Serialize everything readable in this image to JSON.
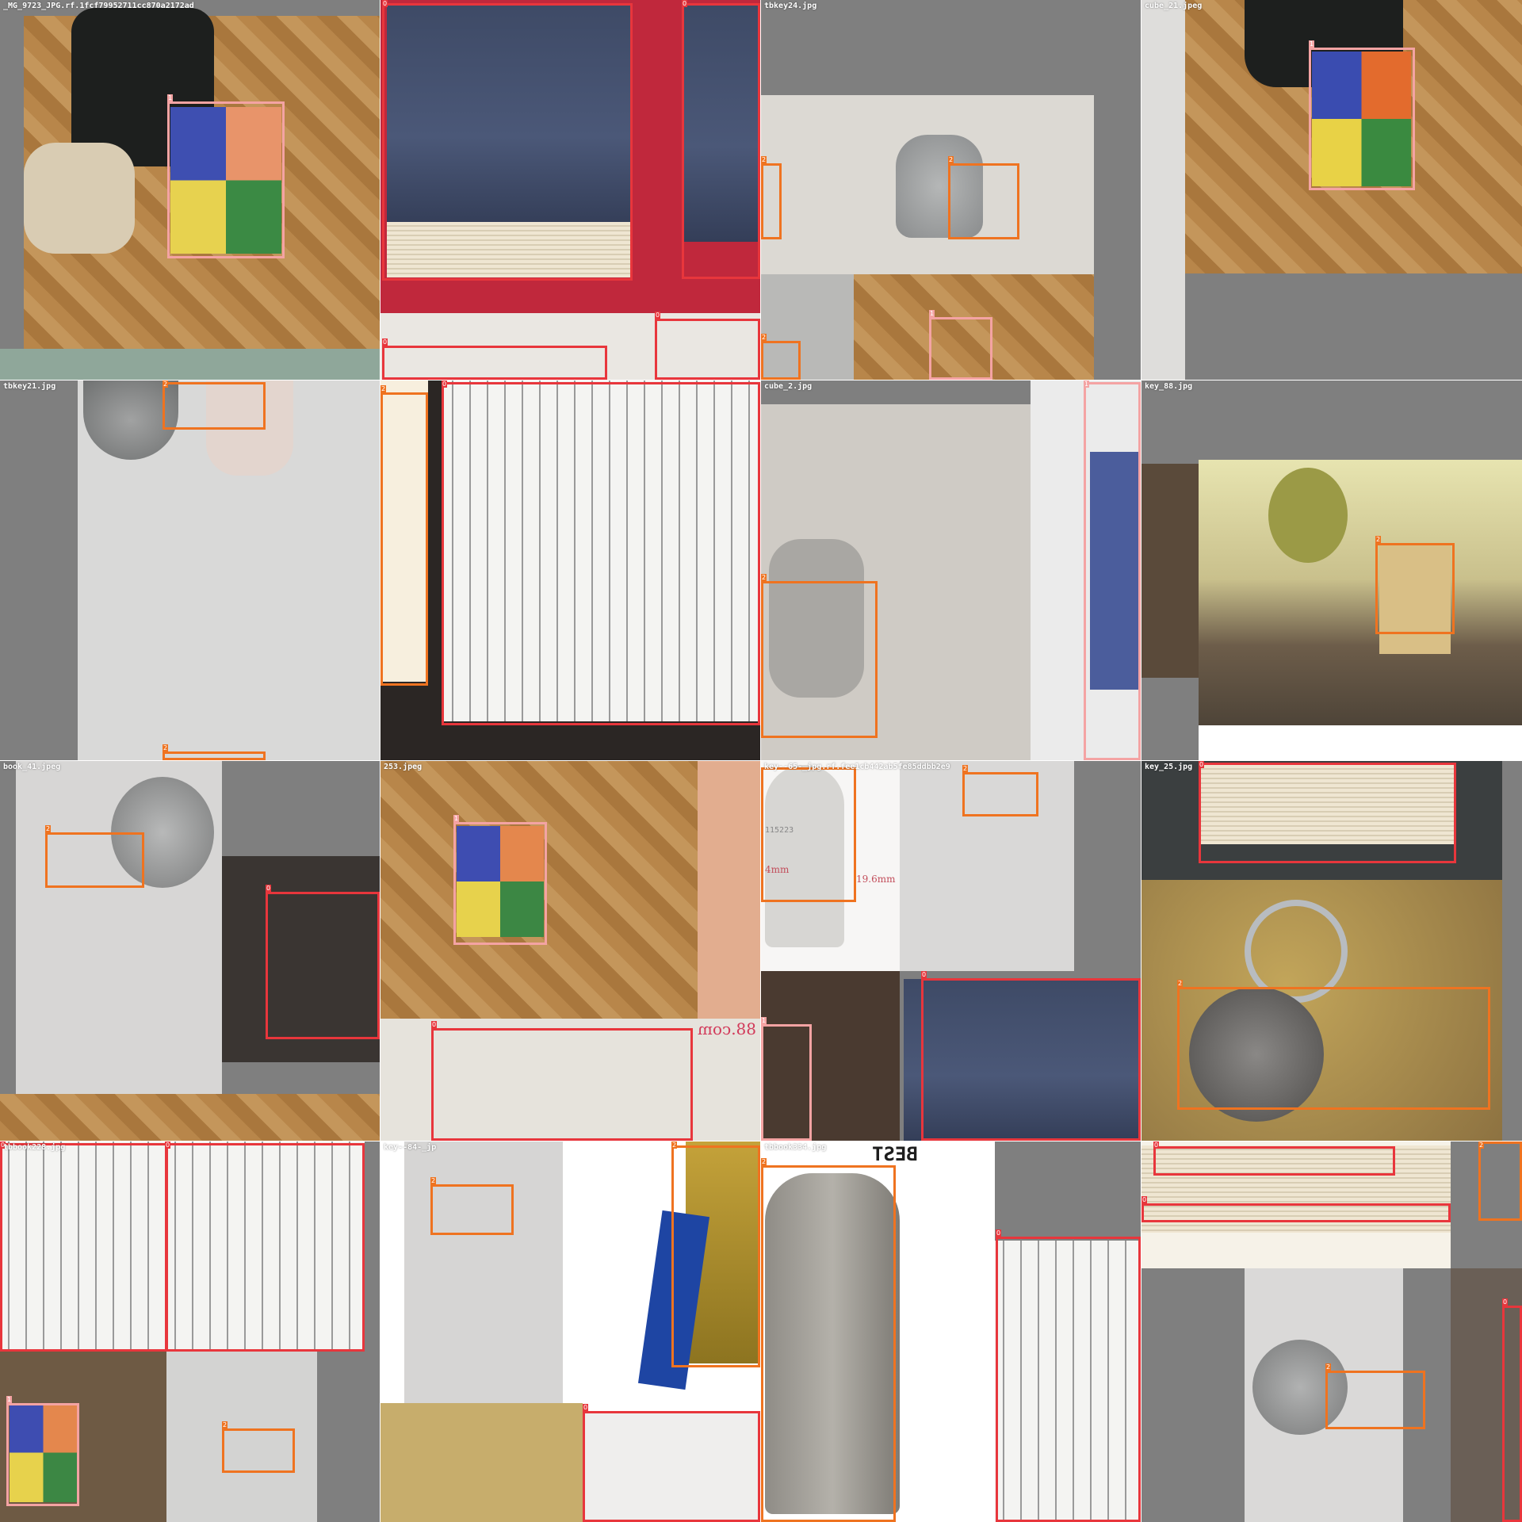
{
  "tiles": [
    {
      "id": "t00",
      "filename": "_MG_9723_JPG.rf.1fcf79952711cc870a2172ad",
      "boxes": [
        {
          "cls": "1"
        }
      ]
    },
    {
      "id": "t01",
      "filename": "",
      "boxes": [
        {
          "cls": "0"
        },
        {
          "cls": "0"
        },
        {
          "cls": "0"
        },
        {
          "cls": "0"
        }
      ]
    },
    {
      "id": "t02",
      "filename": "tbkey24.jpg",
      "boxes": [
        {
          "cls": "2"
        },
        {
          "cls": "2"
        },
        {
          "cls": "1"
        },
        {
          "cls": "2"
        }
      ]
    },
    {
      "id": "t03",
      "filename": "cube_21.jpeg",
      "boxes": [
        {
          "cls": "1"
        }
      ]
    },
    {
      "id": "t10",
      "filename": "tbkey21.jpg",
      "boxes": [
        {
          "cls": "2"
        },
        {
          "cls": "2"
        }
      ]
    },
    {
      "id": "t11",
      "filename": "",
      "boxes": [
        {
          "cls": "2"
        },
        {
          "cls": "0"
        }
      ]
    },
    {
      "id": "t12",
      "filename": "cube_2.jpg",
      "boxes": [
        {
          "cls": "2"
        },
        {
          "cls": "1"
        }
      ]
    },
    {
      "id": "t13",
      "filename": "key_88.jpg",
      "boxes": [
        {
          "cls": "2"
        }
      ]
    },
    {
      "id": "t20",
      "filename": "book_41.jpeg",
      "boxes": [
        {
          "cls": "2"
        },
        {
          "cls": "0"
        }
      ]
    },
    {
      "id": "t21",
      "filename": "253.jpeg",
      "boxes": [
        {
          "cls": "1"
        },
        {
          "cls": "0"
        }
      ]
    },
    {
      "id": "t22",
      "filename": "key--65-_jpg.rf.fee1cb442ab5fe85ddbb2e9",
      "boxes": [
        {
          "cls": "2"
        },
        {
          "cls": "2"
        },
        {
          "cls": "1"
        },
        {
          "cls": "0"
        }
      ]
    },
    {
      "id": "t23",
      "filename": "key_25.jpg",
      "boxes": [
        {
          "cls": "0"
        },
        {
          "cls": "2"
        }
      ]
    },
    {
      "id": "t30",
      "filename": "tbbook228.jpg",
      "boxes": [
        {
          "cls": "0"
        },
        {
          "cls": "0"
        },
        {
          "cls": "1"
        },
        {
          "cls": "2"
        }
      ]
    },
    {
      "id": "t31",
      "filename": "key--84-_jp",
      "boxes": [
        {
          "cls": "2"
        },
        {
          "cls": "2"
        },
        {
          "cls": "0"
        }
      ]
    },
    {
      "id": "t32",
      "filename": "tbbook334.jpg",
      "boxes": [
        {
          "cls": "2"
        },
        {
          "cls": "0"
        }
      ]
    },
    {
      "id": "t33",
      "filename": "",
      "boxes": [
        {
          "cls": "0"
        },
        {
          "cls": "0"
        },
        {
          "cls": "2"
        },
        {
          "cls": "2"
        },
        {
          "cls": "0"
        }
      ]
    }
  ],
  "in_image_text": {
    "measure_1": "19.6mm",
    "measure_2": "4mm",
    "measure_3": "115223",
    "mirror_a": "88.com",
    "mirror_b": "BEST"
  },
  "class_colors": {
    "0": "#e8363c",
    "1": "#f4a3a3",
    "2": "#ef7320"
  }
}
